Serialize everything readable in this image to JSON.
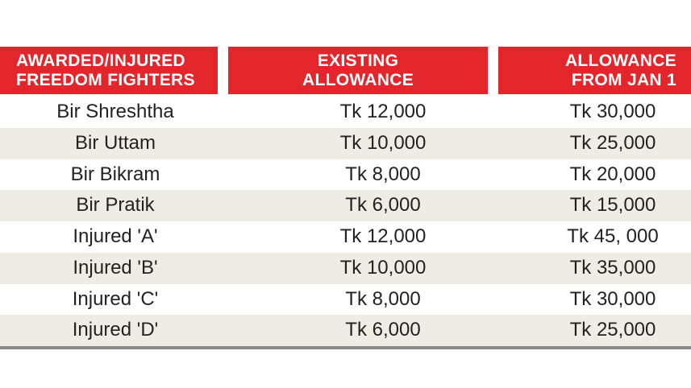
{
  "table": {
    "header": [
      [
        "AWARDED/INJURED",
        "FREEDOM FIGHTERS"
      ],
      [
        "EXISTING",
        "ALLOWANCE"
      ],
      [
        "ALLOWANCE",
        "FROM JAN 1"
      ]
    ],
    "rows": [
      [
        "Bir Shreshtha",
        "Tk 12,000",
        "Tk 30,000"
      ],
      [
        "Bir Uttam",
        "Tk 10,000",
        "Tk 25,000"
      ],
      [
        "Bir Bikram",
        "Tk 8,000",
        "Tk 20,000"
      ],
      [
        "Bir Pratik",
        "Tk 6,000",
        "Tk 15,000"
      ],
      [
        "Injured 'A'",
        "Tk 12,000",
        "Tk 45, 000"
      ],
      [
        "Injured 'B'",
        "Tk 10,000",
        "Tk 35,000"
      ],
      [
        "Injured 'C'",
        "Tk 8,000",
        "Tk 30,000"
      ],
      [
        "Injured 'D'",
        "Tk 6,000",
        "Tk 25,000"
      ]
    ]
  }
}
